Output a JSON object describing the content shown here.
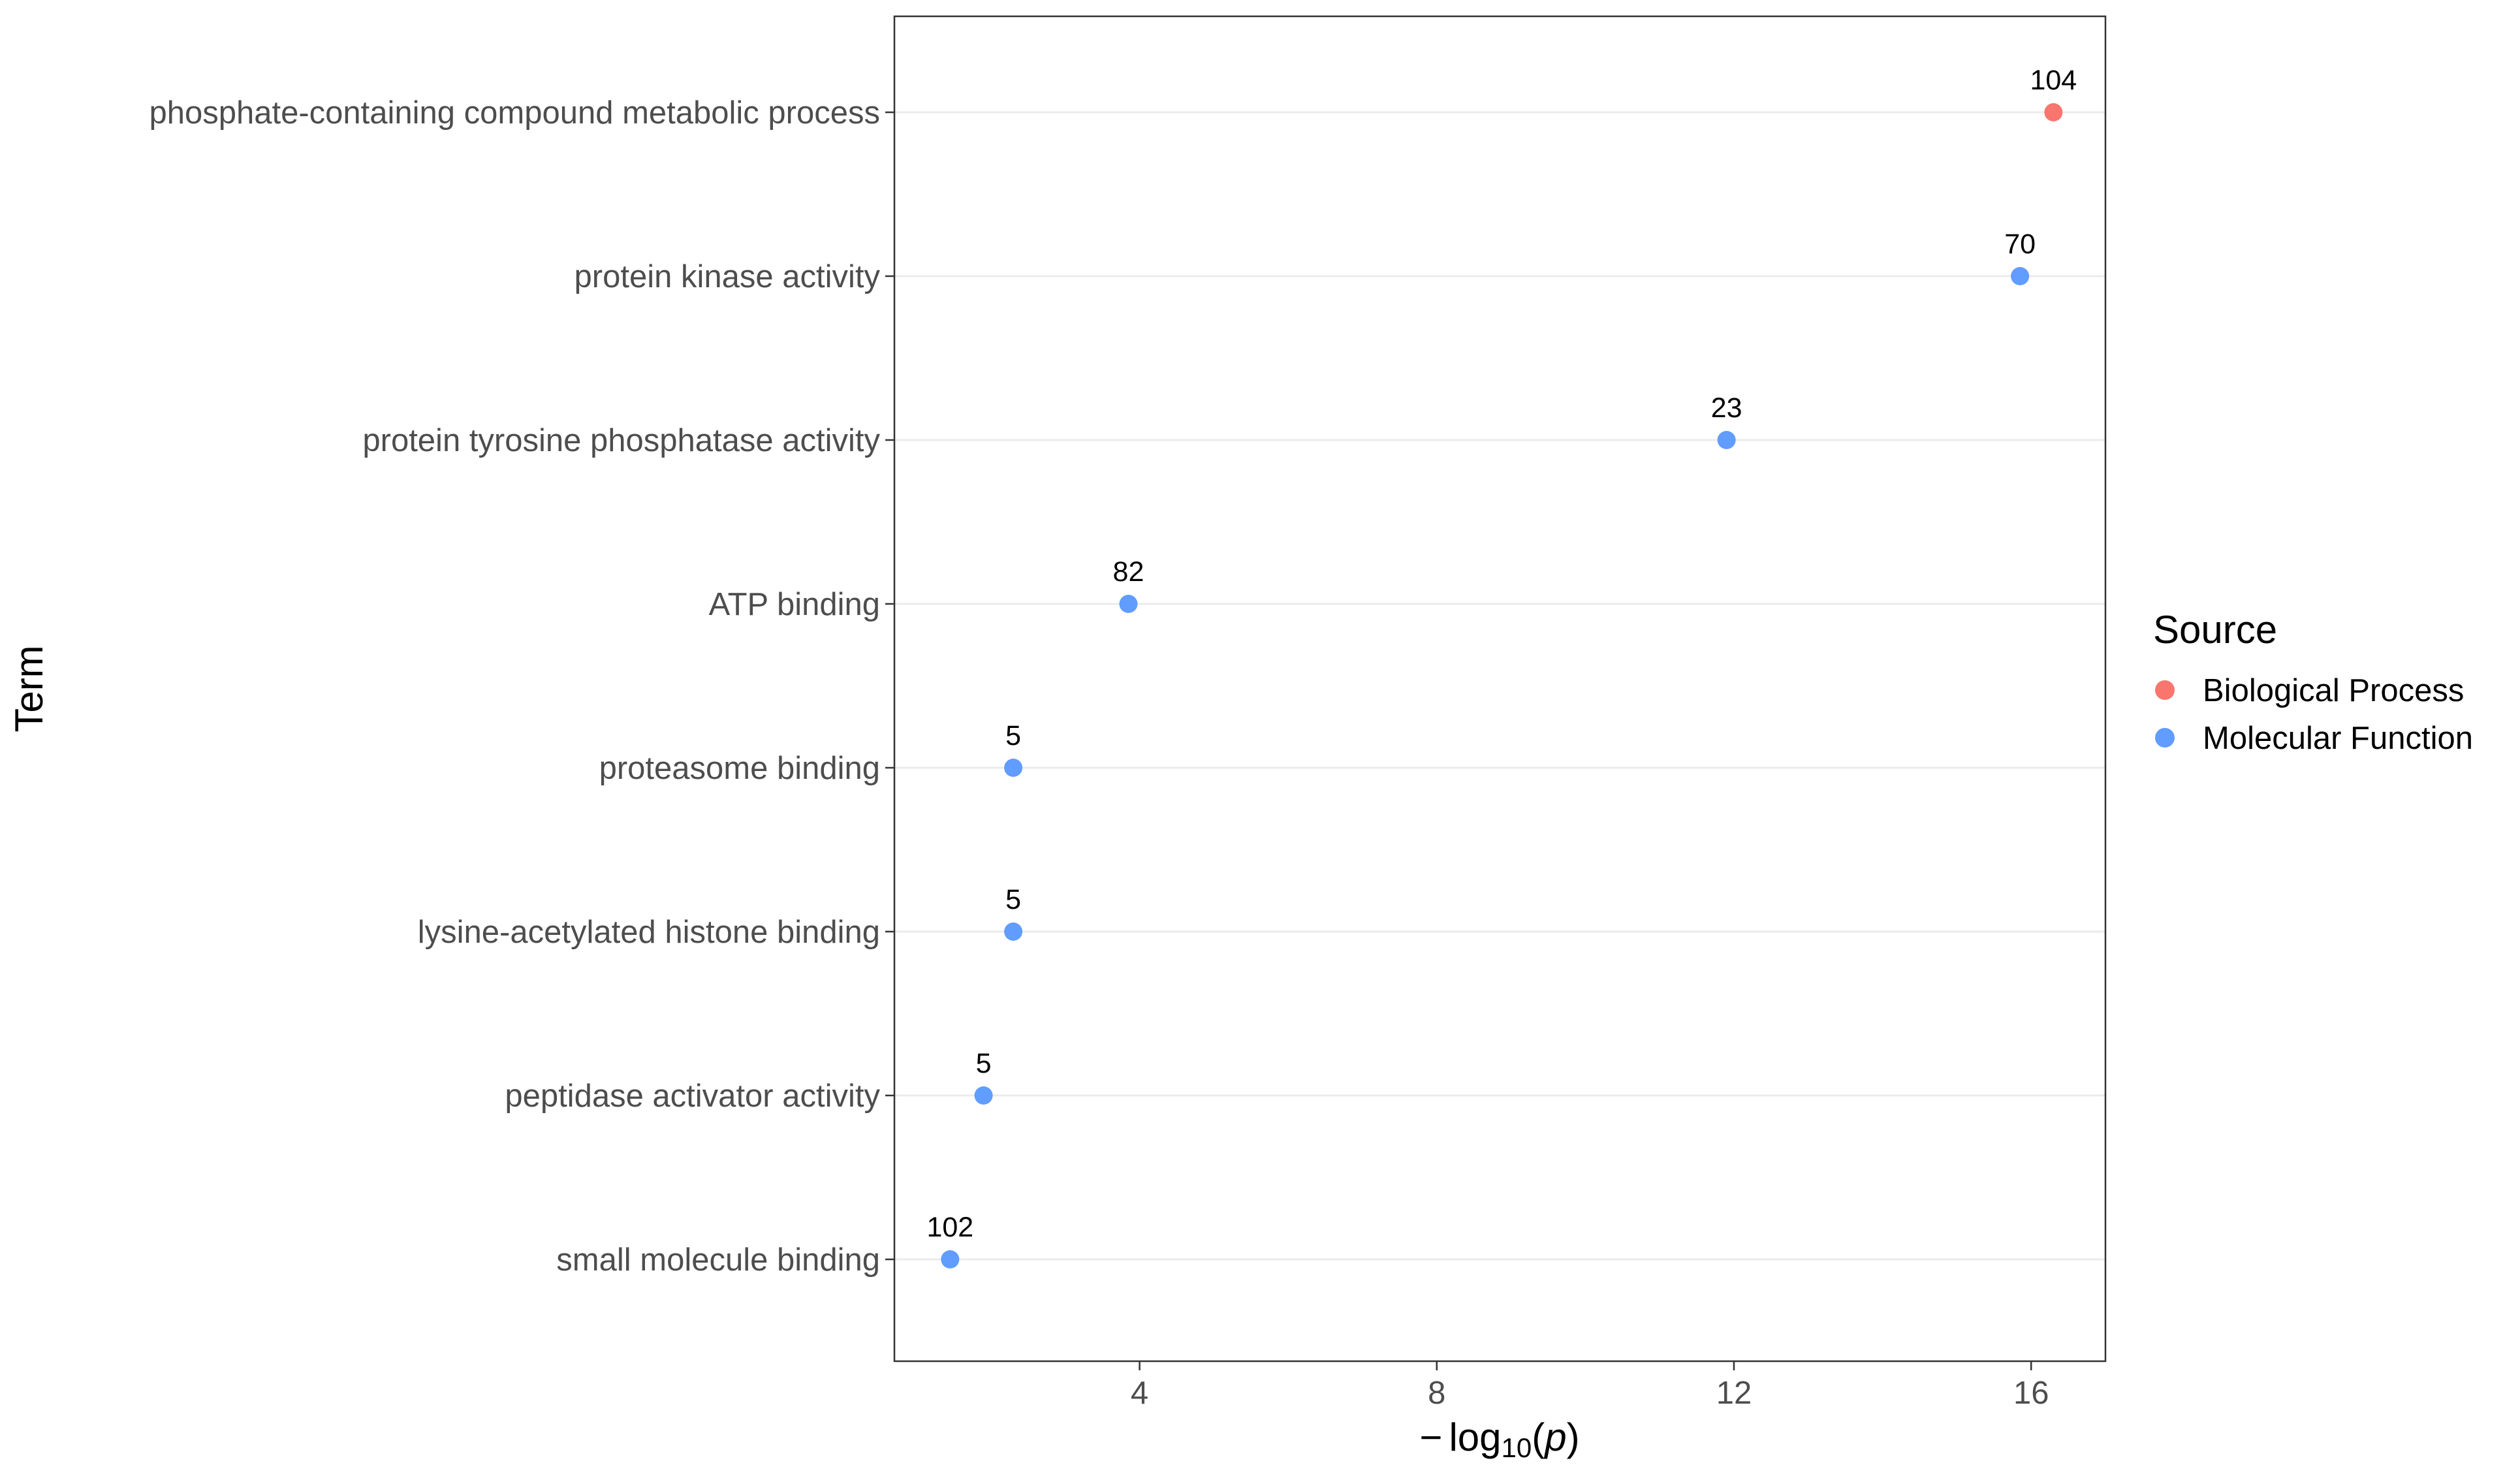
{
  "chart_data": {
    "type": "scatter",
    "xlabel_prefix": "−",
    "xlabel_func": "log",
    "xlabel_sub": "10",
    "xlabel_arg": "p",
    "ylabel": "Term",
    "xlim": [
      0.7,
      17.0
    ],
    "xticks": [
      4,
      8,
      12,
      16
    ],
    "xtick_labels": [
      "4",
      "8",
      "12",
      "16"
    ],
    "grid": "horizontal major lines only",
    "legend_position": "right",
    "legend": {
      "title": "Source",
      "entries": [
        {
          "name": "Biological Process",
          "color": "#F8766D"
        },
        {
          "name": "Molecular Function",
          "color": "#619CFF"
        }
      ]
    },
    "points": [
      {
        "term": "phosphate-containing compound metabolic process",
        "x": 16.3,
        "count": "104",
        "source": "Biological Process"
      },
      {
        "term": "protein kinase activity",
        "x": 15.85,
        "count": "70",
        "source": "Molecular Function"
      },
      {
        "term": "protein tyrosine phosphatase activity",
        "x": 11.9,
        "count": "23",
        "source": "Molecular Function"
      },
      {
        "term": "ATP binding",
        "x": 3.85,
        "count": "82",
        "source": "Molecular Function"
      },
      {
        "term": "proteasome binding",
        "x": 2.3,
        "count": "5",
        "source": "Molecular Function"
      },
      {
        "term": "lysine-acetylated histone binding",
        "x": 2.3,
        "count": "5",
        "source": "Molecular Function"
      },
      {
        "term": "peptidase activator activity",
        "x": 1.9,
        "count": "5",
        "source": "Molecular Function"
      },
      {
        "term": "small molecule binding",
        "x": 1.45,
        "count": "102",
        "source": "Molecular Function"
      }
    ]
  }
}
